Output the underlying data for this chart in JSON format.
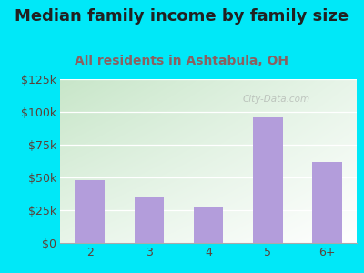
{
  "title": "Median family income by family size",
  "subtitle": "All residents in Ashtabula, OH",
  "categories": [
    "2",
    "3",
    "4",
    "5",
    "6+"
  ],
  "values": [
    48000,
    35000,
    27000,
    96000,
    62000
  ],
  "bar_color": "#b39ddb",
  "title_color": "#212121",
  "subtitle_color": "#8b6060",
  "background_outer": "#00e8f8",
  "ylim": [
    0,
    125000
  ],
  "yticks": [
    0,
    25000,
    50000,
    75000,
    100000,
    125000
  ],
  "ytick_labels": [
    "$0",
    "$25k",
    "$50k",
    "$75k",
    "$100k",
    "$125k"
  ],
  "title_fontsize": 13,
  "subtitle_fontsize": 10,
  "tick_color": "#5d4037",
  "axis_label_fontsize": 9,
  "gradient_top_left": "#c8e6c9",
  "gradient_bottom_right": "#ffffff"
}
